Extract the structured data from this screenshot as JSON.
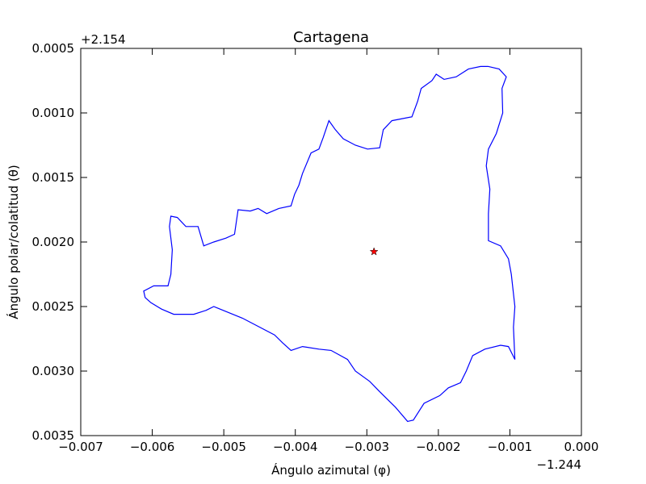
{
  "chart_data": {
    "type": "line",
    "title": "Cartagena",
    "x_label": "Ángulo azimutal (φ)",
    "y_label": "Ángulo polar/colatitud (θ)",
    "x_offset_text": "−1.244",
    "y_offset_text": "+2.154",
    "xlim": [
      -0.007,
      0.0
    ],
    "ylim": [
      0.0035,
      0.0005
    ],
    "xticks": [
      {
        "value": -0.007,
        "label": "−0.007"
      },
      {
        "value": -0.006,
        "label": "−0.006"
      },
      {
        "value": -0.005,
        "label": "−0.005"
      },
      {
        "value": -0.004,
        "label": "−0.004"
      },
      {
        "value": -0.003,
        "label": "−0.003"
      },
      {
        "value": -0.002,
        "label": "−0.002"
      },
      {
        "value": -0.001,
        "label": "−0.001"
      },
      {
        "value": 0.0,
        "label": "0.000"
      }
    ],
    "yticks": [
      0.0005,
      {
        "value": 0.001,
        "label": "0.0010"
      },
      0.0015,
      {
        "value": 0.002,
        "label": "0.0020"
      },
      0.0025,
      {
        "value": 0.003,
        "label": "0.0030"
      },
      0.0035
    ],
    "grid": false,
    "series": [
      {
        "color": "#0000ff",
        "x": [
          -0.0013,
          -0.00115,
          -0.00105,
          -0.00111,
          -0.0011,
          -0.00119,
          -0.0013,
          -0.00133,
          -0.00128,
          -0.0013,
          -0.0013,
          -0.00113,
          -0.00102,
          -0.00098,
          -0.00093,
          -0.00095,
          -0.00093,
          -0.00102,
          -0.00113,
          -0.00135,
          -0.00152,
          -0.00161,
          -0.00169,
          -0.00186,
          -0.00198,
          -0.0022,
          -0.00235,
          -0.00243,
          -0.0026,
          -0.00282,
          -0.00296,
          -0.00316,
          -0.00327,
          -0.0035,
          -0.00367,
          -0.0039,
          -0.00406,
          -0.00418,
          -0.00429,
          -0.00474,
          -0.00514,
          -0.00525,
          -0.00542,
          -0.0057,
          -0.00587,
          -0.00602,
          -0.0061,
          -0.00612,
          -0.00598,
          -0.00578,
          -0.00574,
          -0.00572,
          -0.00576,
          -0.00574,
          -0.00565,
          -0.00553,
          -0.00536,
          -0.00528,
          -0.00514,
          -0.00497,
          -0.00485,
          -0.0048,
          -0.00463,
          -0.00452,
          -0.0044,
          -0.00423,
          -0.00406,
          -0.00401,
          -0.00395,
          -0.0039,
          -0.00378,
          -0.00367,
          -0.00361,
          -0.00353,
          -0.00344,
          -0.00333,
          -0.00316,
          -0.00299,
          -0.00282,
          -0.00277,
          -0.00265,
          -0.00237,
          -0.00229,
          -0.00224,
          -0.00209,
          -0.00203,
          -0.00192,
          -0.00175,
          -0.00158,
          -0.00141,
          -0.0013
        ],
        "values": [
          0.00064,
          0.00066,
          0.00072,
          0.00081,
          0.001,
          0.00116,
          0.00128,
          0.00141,
          0.00159,
          0.00178,
          0.00199,
          0.00203,
          0.00213,
          0.00225,
          0.0025,
          0.00266,
          0.00291,
          0.00281,
          0.0028,
          0.00283,
          0.00288,
          0.003,
          0.00309,
          0.00313,
          0.00319,
          0.00325,
          0.00338,
          0.00339,
          0.00328,
          0.00316,
          0.00308,
          0.003,
          0.00291,
          0.00284,
          0.00283,
          0.00281,
          0.00284,
          0.00278,
          0.00272,
          0.00259,
          0.0025,
          0.00253,
          0.00256,
          0.00256,
          0.00252,
          0.00247,
          0.00243,
          0.00238,
          0.00234,
          0.00234,
          0.00225,
          0.00206,
          0.00188,
          0.0018,
          0.00181,
          0.00188,
          0.00188,
          0.00203,
          0.002,
          0.00197,
          0.00194,
          0.00175,
          0.00176,
          0.00174,
          0.00178,
          0.00174,
          0.00172,
          0.00163,
          0.00156,
          0.00147,
          0.00131,
          0.00128,
          0.00119,
          0.00106,
          0.00113,
          0.0012,
          0.00125,
          0.00128,
          0.00127,
          0.00113,
          0.00106,
          0.00103,
          0.00091,
          0.00081,
          0.00075,
          0.0007,
          0.00074,
          0.00072,
          0.00066,
          0.00064,
          0.00064
        ]
      },
      {
        "color": "#ff0000",
        "marker": "star",
        "x": [
          -0.0029
        ],
        "values": [
          0.002075
        ]
      }
    ]
  }
}
